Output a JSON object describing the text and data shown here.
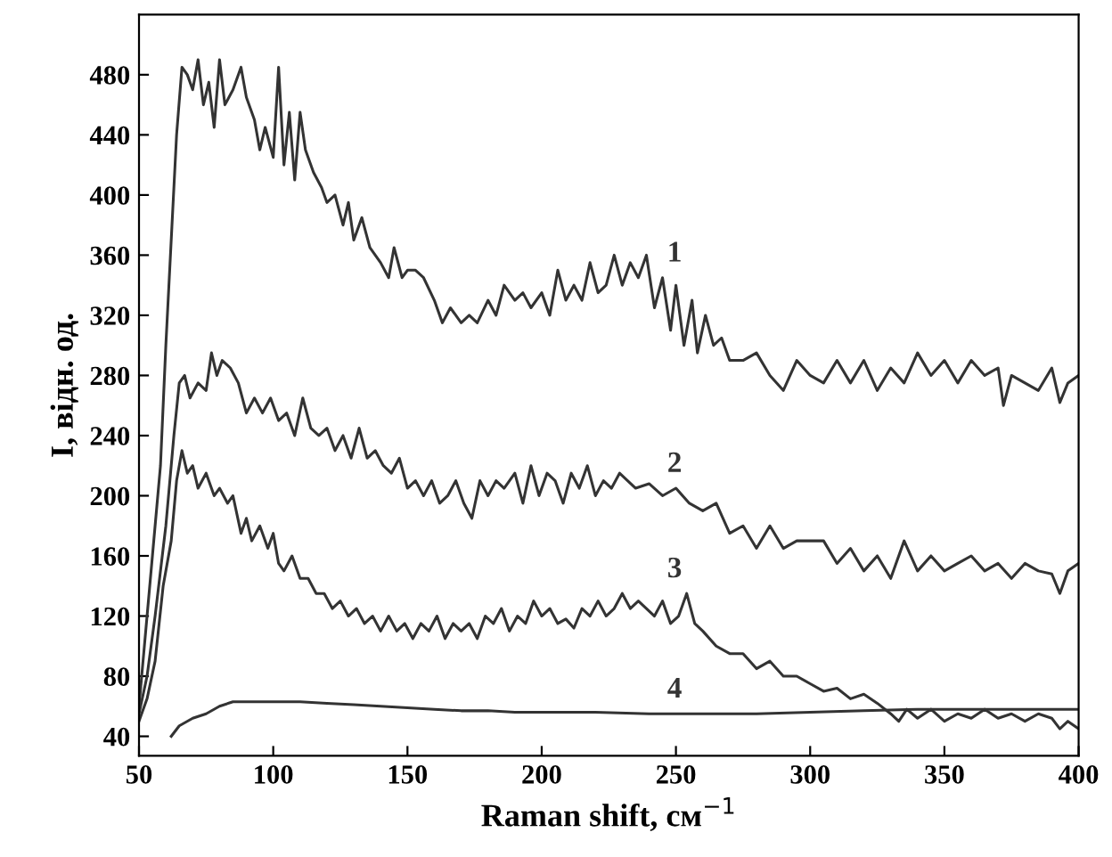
{
  "chart_data": {
    "type": "line",
    "xlabel": "Raman shift, см$^{−1}$",
    "ylabel": "I, відн. од.",
    "xlim": [
      50,
      400
    ],
    "xticks": [
      50,
      100,
      150,
      200,
      250,
      300,
      350,
      400
    ],
    "ylim": [
      27,
      520
    ],
    "yticks": [
      40,
      80,
      120,
      160,
      200,
      240,
      280,
      320,
      360,
      400,
      440,
      480
    ],
    "grid": false,
    "legend": false,
    "marker": "none",
    "line_style": "solid",
    "series": [
      {
        "name": "1",
        "color": "#333333",
        "x": [
          50,
          52,
          55,
          58,
          60,
          62,
          64,
          66,
          68,
          70,
          72,
          74,
          76,
          78,
          80,
          82,
          85,
          88,
          90,
          93,
          95,
          97,
          100,
          102,
          104,
          106,
          108,
          110,
          112,
          115,
          118,
          120,
          123,
          126,
          128,
          130,
          133,
          136,
          140,
          143,
          145,
          148,
          150,
          153,
          156,
          160,
          163,
          166,
          170,
          173,
          176,
          180,
          183,
          186,
          190,
          193,
          196,
          200,
          203,
          206,
          209,
          212,
          215,
          218,
          221,
          224,
          227,
          230,
          233,
          236,
          239,
          242,
          245,
          248,
          250,
          253,
          256,
          258,
          261,
          264,
          267,
          270,
          275,
          280,
          285,
          290,
          295,
          300,
          305,
          310,
          315,
          320,
          325,
          330,
          335,
          340,
          345,
          350,
          355,
          360,
          365,
          370,
          372,
          375,
          380,
          385,
          390,
          393,
          396,
          400
        ],
        "values": [
          60,
          100,
          160,
          220,
          300,
          370,
          440,
          485,
          480,
          470,
          490,
          460,
          475,
          445,
          490,
          460,
          470,
          485,
          465,
          450,
          430,
          445,
          425,
          485,
          420,
          455,
          410,
          455,
          430,
          415,
          405,
          395,
          400,
          380,
          395,
          370,
          385,
          365,
          355,
          345,
          365,
          345,
          350,
          350,
          345,
          330,
          315,
          325,
          315,
          320,
          315,
          330,
          320,
          340,
          330,
          335,
          325,
          335,
          320,
          350,
          330,
          340,
          330,
          355,
          335,
          340,
          360,
          340,
          355,
          345,
          360,
          325,
          345,
          310,
          340,
          300,
          330,
          295,
          320,
          300,
          305,
          290,
          290,
          295,
          280,
          270,
          290,
          280,
          275,
          290,
          275,
          290,
          270,
          285,
          275,
          295,
          280,
          290,
          275,
          290,
          280,
          285,
          260,
          280,
          275,
          270,
          285,
          262,
          275,
          280
        ]
      },
      {
        "name": "2",
        "color": "#333333",
        "x": [
          50,
          53,
          56,
          60,
          63,
          65,
          67,
          69,
          72,
          75,
          77,
          79,
          81,
          84,
          87,
          90,
          93,
          96,
          99,
          102,
          105,
          108,
          111,
          114,
          117,
          120,
          123,
          126,
          129,
          132,
          135,
          138,
          141,
          144,
          147,
          150,
          153,
          156,
          159,
          162,
          165,
          168,
          171,
          174,
          177,
          180,
          183,
          186,
          190,
          193,
          196,
          199,
          202,
          205,
          208,
          211,
          214,
          217,
          220,
          223,
          226,
          229,
          232,
          235,
          240,
          245,
          250,
          255,
          260,
          265,
          270,
          275,
          280,
          285,
          290,
          295,
          300,
          305,
          310,
          315,
          320,
          325,
          330,
          335,
          340,
          345,
          350,
          355,
          360,
          365,
          370,
          375,
          380,
          385,
          390,
          393,
          396,
          400
        ],
        "values": [
          55,
          80,
          120,
          180,
          240,
          275,
          280,
          265,
          275,
          270,
          295,
          280,
          290,
          285,
          275,
          255,
          265,
          255,
          265,
          250,
          255,
          240,
          265,
          245,
          240,
          245,
          230,
          240,
          225,
          245,
          225,
          230,
          220,
          215,
          225,
          205,
          210,
          200,
          210,
          195,
          200,
          210,
          195,
          185,
          210,
          200,
          210,
          205,
          215,
          195,
          220,
          200,
          215,
          210,
          195,
          215,
          205,
          220,
          200,
          210,
          205,
          215,
          210,
          205,
          208,
          200,
          205,
          195,
          190,
          195,
          175,
          180,
          165,
          180,
          165,
          170,
          170,
          170,
          155,
          165,
          150,
          160,
          145,
          170,
          150,
          160,
          150,
          155,
          160,
          150,
          155,
          145,
          155,
          150,
          148,
          135,
          150,
          155
        ]
      },
      {
        "name": "3",
        "color": "#333333",
        "x": [
          50,
          53,
          56,
          59,
          62,
          64,
          66,
          68,
          70,
          72,
          75,
          78,
          80,
          83,
          85,
          88,
          90,
          92,
          95,
          98,
          100,
          102,
          104,
          107,
          110,
          113,
          116,
          119,
          122,
          125,
          128,
          131,
          134,
          137,
          140,
          143,
          146,
          149,
          152,
          155,
          158,
          161,
          164,
          167,
          170,
          173,
          176,
          179,
          182,
          185,
          188,
          191,
          194,
          197,
          200,
          203,
          206,
          209,
          212,
          215,
          218,
          221,
          224,
          227,
          230,
          233,
          236,
          239,
          242,
          245,
          248,
          251,
          254,
          257,
          260,
          265,
          270,
          275,
          280,
          285,
          290,
          295,
          300,
          305,
          310,
          315,
          320,
          325,
          330,
          333,
          336,
          340,
          345,
          350,
          355,
          360,
          365,
          370,
          375,
          380,
          385,
          390,
          393,
          396,
          400
        ],
        "values": [
          50,
          65,
          90,
          140,
          170,
          210,
          230,
          215,
          220,
          205,
          215,
          200,
          205,
          195,
          200,
          175,
          185,
          170,
          180,
          165,
          175,
          155,
          150,
          160,
          145,
          145,
          135,
          135,
          125,
          130,
          120,
          125,
          115,
          120,
          110,
          120,
          110,
          115,
          105,
          115,
          110,
          120,
          105,
          115,
          110,
          115,
          105,
          120,
          115,
          125,
          110,
          120,
          115,
          130,
          120,
          125,
          115,
          118,
          112,
          125,
          120,
          130,
          120,
          125,
          135,
          125,
          130,
          125,
          120,
          130,
          115,
          120,
          135,
          115,
          110,
          100,
          95,
          95,
          85,
          90,
          80,
          80,
          75,
          70,
          72,
          65,
          68,
          62,
          55,
          50,
          58,
          52,
          58,
          50,
          55,
          52,
          58,
          52,
          55,
          50,
          55,
          52,
          45,
          50,
          45
        ]
      },
      {
        "name": "4",
        "color": "#333333",
        "x": [
          62,
          65,
          70,
          75,
          80,
          85,
          90,
          100,
          110,
          120,
          130,
          140,
          150,
          160,
          170,
          180,
          190,
          200,
          220,
          240,
          260,
          280,
          300,
          320,
          340,
          360,
          380,
          400
        ],
        "values": [
          40,
          47,
          52,
          55,
          60,
          63,
          63,
          63,
          63,
          62,
          61,
          60,
          59,
          58,
          57,
          57,
          56,
          56,
          56,
          55,
          55,
          55,
          56,
          57,
          58,
          58,
          58,
          58
        ]
      }
    ]
  }
}
